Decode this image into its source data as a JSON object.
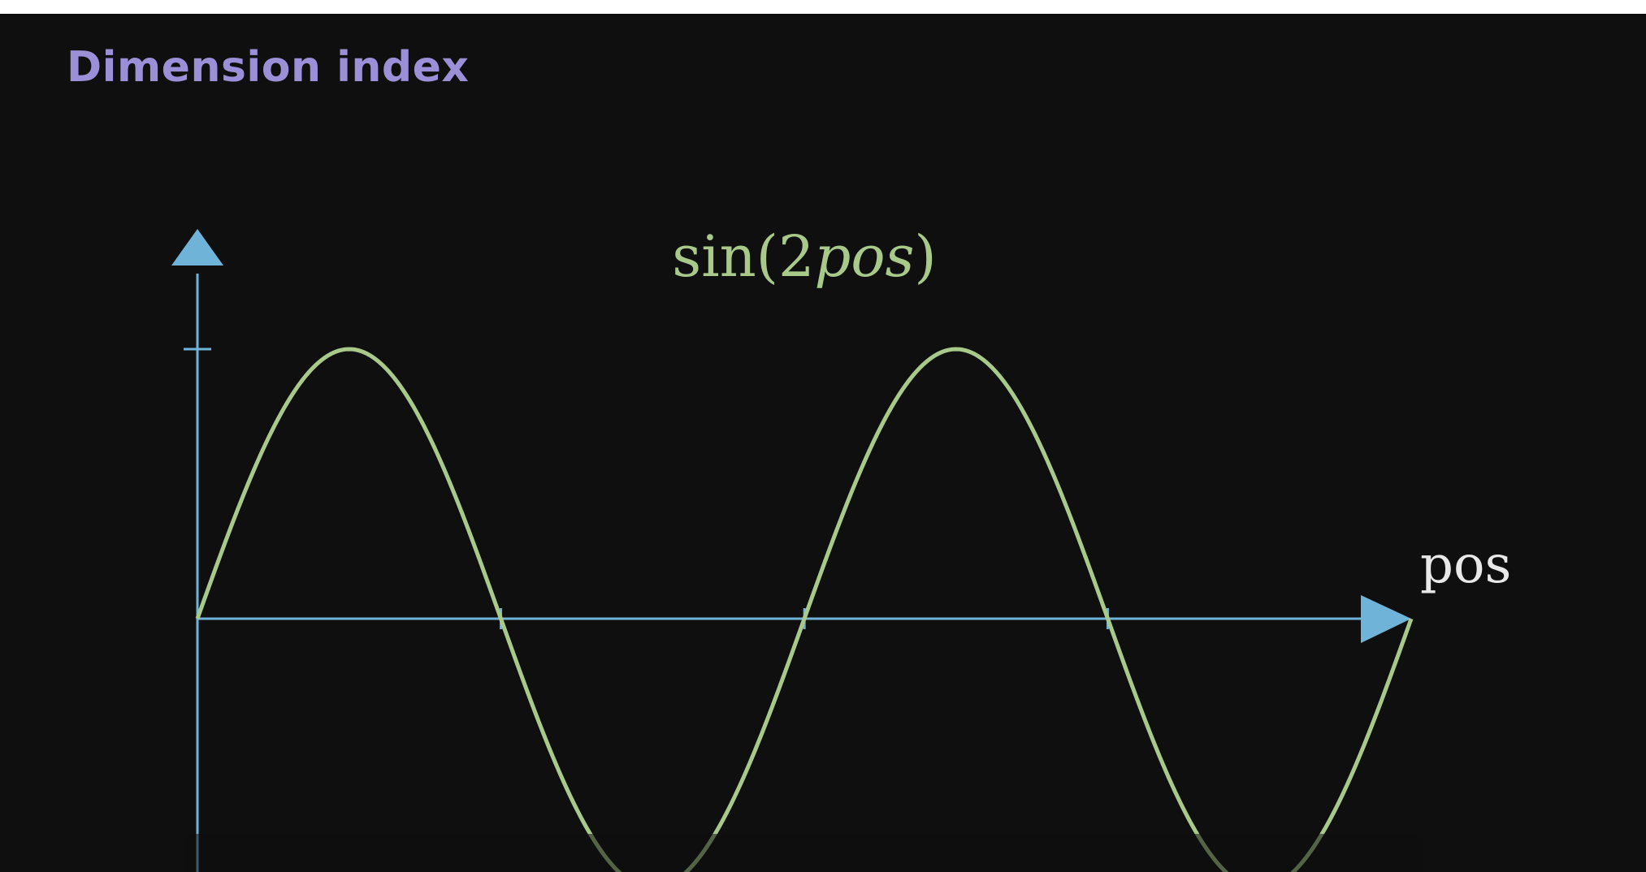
{
  "header": {
    "title": "Dimension index"
  },
  "colors": {
    "background": "#0f0f0f",
    "heading": "#9b8fd8",
    "axis": "#6fb3d9",
    "curve": "#a9c98a",
    "x_label": "#e8e8e8"
  },
  "chart_data": {
    "type": "line",
    "title": "sin(2pos)",
    "title_parts": {
      "func": "sin(2",
      "var": "pos",
      "close": ")"
    },
    "xlabel": "pos",
    "ylabel": "",
    "function": "sin(2*pos)",
    "xlim": [
      0,
      6.283
    ],
    "ylim": [
      -1,
      1
    ],
    "x_ticks": [
      1.571,
      3.142,
      4.712
    ],
    "y_ticks": [
      1
    ],
    "grid": false,
    "legend": "none"
  }
}
